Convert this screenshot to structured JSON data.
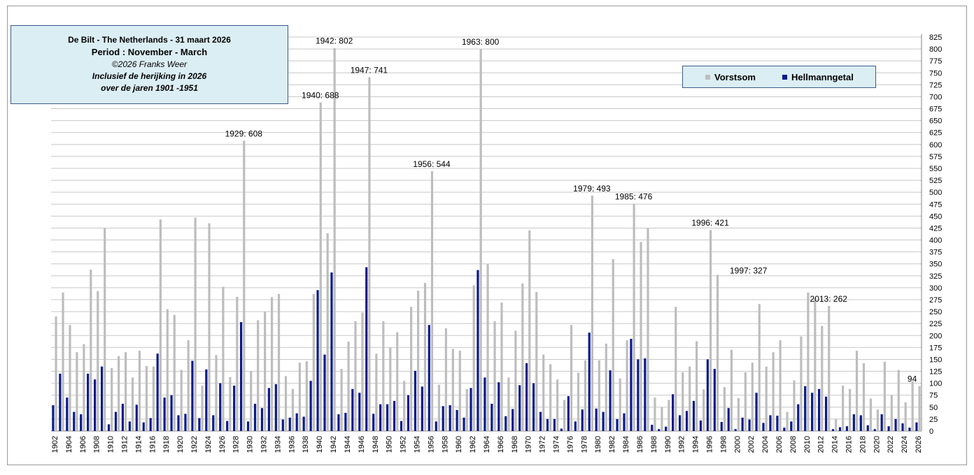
{
  "info": {
    "line1": "De Bilt - The Netherlands   -  31 maart 2026",
    "line2": "Period : November - March",
    "line3": "©2026 Franks Weer",
    "line4": "Inclusief de herijking in 2026",
    "line5": "over de jaren 1901 -1951"
  },
  "legend": {
    "items": [
      {
        "label": "Vorstsom",
        "color": "#bdbdbd"
      },
      {
        "label": "Hellmanngetal",
        "color": "#0a1a8c"
      }
    ]
  },
  "chart_data": {
    "type": "bar",
    "title": "",
    "xlabel": "",
    "ylabel": "",
    "ylim": [
      0,
      825
    ],
    "yticks": [
      0,
      25,
      50,
      75,
      100,
      125,
      150,
      175,
      200,
      225,
      250,
      275,
      300,
      325,
      350,
      375,
      400,
      425,
      450,
      475,
      500,
      525,
      550,
      575,
      600,
      625,
      650,
      675,
      700,
      725,
      750,
      775,
      800,
      825
    ],
    "y_axis_position": "right",
    "grid": true,
    "legend_position": "top-right",
    "first_year": 1902,
    "categories": [
      "1902",
      "1903",
      "1904",
      "1905",
      "1906",
      "1907",
      "1908",
      "1909",
      "1910",
      "1911",
      "1912",
      "1913",
      "1914",
      "1915",
      "1916",
      "1917",
      "1918",
      "1919",
      "1920",
      "1921",
      "1922",
      "1923",
      "1924",
      "1925",
      "1926",
      "1927",
      "1928",
      "1929",
      "1930",
      "1931",
      "1932",
      "1933",
      "1934",
      "1935",
      "1936",
      "1937",
      "1938",
      "1939",
      "1940",
      "1941",
      "1942",
      "1943",
      "1944",
      "1945",
      "1946",
      "1947",
      "1948",
      "1949",
      "1950",
      "1951",
      "1952",
      "1953",
      "1954",
      "1955",
      "1956",
      "1957",
      "1958",
      "1959",
      "1960",
      "1961",
      "1962",
      "1963",
      "1964",
      "1965",
      "1966",
      "1967",
      "1968",
      "1969",
      "1970",
      "1971",
      "1972",
      "1973",
      "1974",
      "1975",
      "1976",
      "1977",
      "1978",
      "1979",
      "1980",
      "1981",
      "1982",
      "1983",
      "1984",
      "1985",
      "1986",
      "1987",
      "1988",
      "1989",
      "1990",
      "1991",
      "1992",
      "1993",
      "1994",
      "1995",
      "1996",
      "1997",
      "1998",
      "1999",
      "2000",
      "2001",
      "2002",
      "2003",
      "2004",
      "2005",
      "2006",
      "2007",
      "2008",
      "2009",
      "2010",
      "2011",
      "2012",
      "2013",
      "2014",
      "2015",
      "2016",
      "2017",
      "2018",
      "2019",
      "2020",
      "2021",
      "2022",
      "2023",
      "2024",
      "2025",
      "2026"
    ],
    "tick_labels": [
      "1902",
      "1904",
      "1906",
      "1908",
      "1910",
      "1912",
      "1914",
      "1916",
      "1918",
      "1920",
      "1922",
      "1924",
      "1926",
      "1928",
      "1930",
      "1932",
      "1934",
      "1936",
      "1938",
      "1940",
      "1942",
      "1944",
      "1946",
      "1948",
      "1950",
      "1952",
      "1954",
      "1956",
      "1958",
      "1960",
      "1962",
      "1964",
      "1966",
      "1968",
      "1970",
      "1972",
      "1974",
      "1976",
      "1978",
      "1980",
      "1982",
      "1984",
      "1986",
      "1988",
      "1990",
      "1992",
      "1994",
      "1996",
      "1998",
      "2000",
      "2002",
      "2004",
      "2006",
      "2008",
      "2010",
      "2012",
      "2014",
      "2016",
      "2018",
      "2020",
      "2022",
      "2024",
      "2026"
    ],
    "series": [
      {
        "name": "Vorstsom",
        "color": "#bdbdbd",
        "values": [
          240,
          290,
          222,
          165,
          182,
          338,
          293,
          425,
          132,
          157,
          165,
          112,
          168,
          136,
          135,
          443,
          255,
          243,
          128,
          190,
          447,
          95,
          435,
          159,
          302,
          113,
          281,
          608,
          125,
          232,
          250,
          280,
          287,
          115,
          88,
          143,
          146,
          287,
          688,
          414,
          802,
          130,
          187,
          230,
          248,
          741,
          162,
          230,
          175,
          207,
          105,
          260,
          294,
          310,
          544,
          97,
          215,
          172,
          168,
          88,
          305,
          800,
          350,
          230,
          269,
          112,
          210,
          309,
          420,
          291,
          160,
          140,
          108,
          65,
          222,
          122,
          148,
          493,
          148,
          183,
          360,
          110,
          190,
          476,
          396,
          425,
          70,
          50,
          65,
          260,
          123,
          135,
          188,
          87,
          421,
          327,
          92,
          170,
          69,
          123,
          143,
          266,
          135,
          165,
          190,
          40,
          106,
          198,
          290,
          278,
          220,
          262,
          25,
          95,
          88,
          168,
          142,
          68,
          45,
          145,
          75,
          128,
          60,
          104,
          94
        ]
      },
      {
        "name": "Hellmanngetal",
        "color": "#0a1a8c",
        "values": [
          54,
          120,
          70,
          40,
          35,
          120,
          108,
          135,
          14,
          40,
          57,
          20,
          55,
          18,
          27,
          162,
          70,
          75,
          33,
          36,
          147,
          27,
          129,
          33,
          100,
          21,
          95,
          228,
          20,
          57,
          48,
          90,
          98,
          24,
          28,
          37,
          30,
          105,
          295,
          160,
          332,
          35,
          38,
          88,
          80,
          343,
          36,
          56,
          56,
          63,
          21,
          75,
          126,
          93,
          222,
          20,
          52,
          54,
          44,
          28,
          90,
          337,
          112,
          57,
          102,
          31,
          46,
          96,
          142,
          100,
          40,
          25,
          25,
          5,
          73,
          20,
          45,
          206,
          47,
          40,
          127,
          25,
          37,
          193,
          150,
          152,
          13,
          4,
          9,
          77,
          33,
          42,
          63,
          22,
          150,
          130,
          19,
          48,
          4,
          28,
          24,
          80,
          17,
          33,
          32,
          7,
          20,
          56,
          94,
          80,
          88,
          72,
          4,
          8,
          10,
          35,
          33,
          12,
          4,
          35,
          10,
          25,
          16,
          7,
          18
        ]
      }
    ],
    "annotations": [
      {
        "year": 1929,
        "text": "1929: 608"
      },
      {
        "year": 1940,
        "text": "1940: 688"
      },
      {
        "year": 1942,
        "text": "1942:  802"
      },
      {
        "year": 1947,
        "text": "1947: 741"
      },
      {
        "year": 1956,
        "text": "1956: 544"
      },
      {
        "year": 1963,
        "text": "1963: 800"
      },
      {
        "year": 1979,
        "text": "1979: 493"
      },
      {
        "year": 1985,
        "text": "1985: 476"
      },
      {
        "year": 1996,
        "text": "1996: 421"
      },
      {
        "year": 1997,
        "text": "1997: 327"
      },
      {
        "year": 2013,
        "text": "2013: 262"
      },
      {
        "year": 2026,
        "text": "94"
      }
    ]
  }
}
